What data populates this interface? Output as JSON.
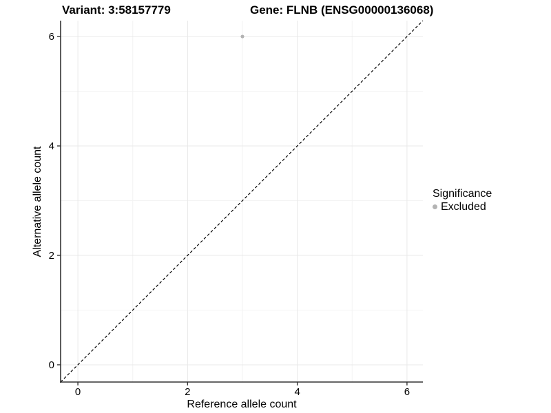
{
  "chart_data": {
    "type": "scatter",
    "title_variant": "Variant: 3:58157779",
    "title_gene": "Gene: FLNB (ENSG00000136068)",
    "xlabel": "Reference allele count",
    "ylabel": "Alternative allele count",
    "xlim": [
      -0.315,
      6.29
    ],
    "ylim": [
      -0.315,
      6.29
    ],
    "x_major_ticks": [
      0,
      2,
      4,
      6
    ],
    "y_major_ticks": [
      0,
      2,
      4,
      6
    ],
    "x_minor_gridlines": [
      1,
      3,
      5
    ],
    "y_minor_gridlines": [
      1,
      3,
      5
    ],
    "grid": true,
    "points": [
      {
        "x": 3,
        "y": 6,
        "series": "Excluded"
      }
    ],
    "reference_line": {
      "type": "identity",
      "slope": 1,
      "intercept": 0,
      "style": "dashed",
      "color": "#000000"
    },
    "legend": {
      "title": "Significance",
      "position": "right",
      "items": [
        {
          "label": "Excluded",
          "color": "#b3b3b3"
        }
      ]
    },
    "colors": {
      "axis": "#333333",
      "grid_major": "#e8e8e8",
      "grid_minor": "#f3f3f3",
      "text": "#000000",
      "point": "#b3b3b3",
      "background": "#ffffff"
    }
  }
}
